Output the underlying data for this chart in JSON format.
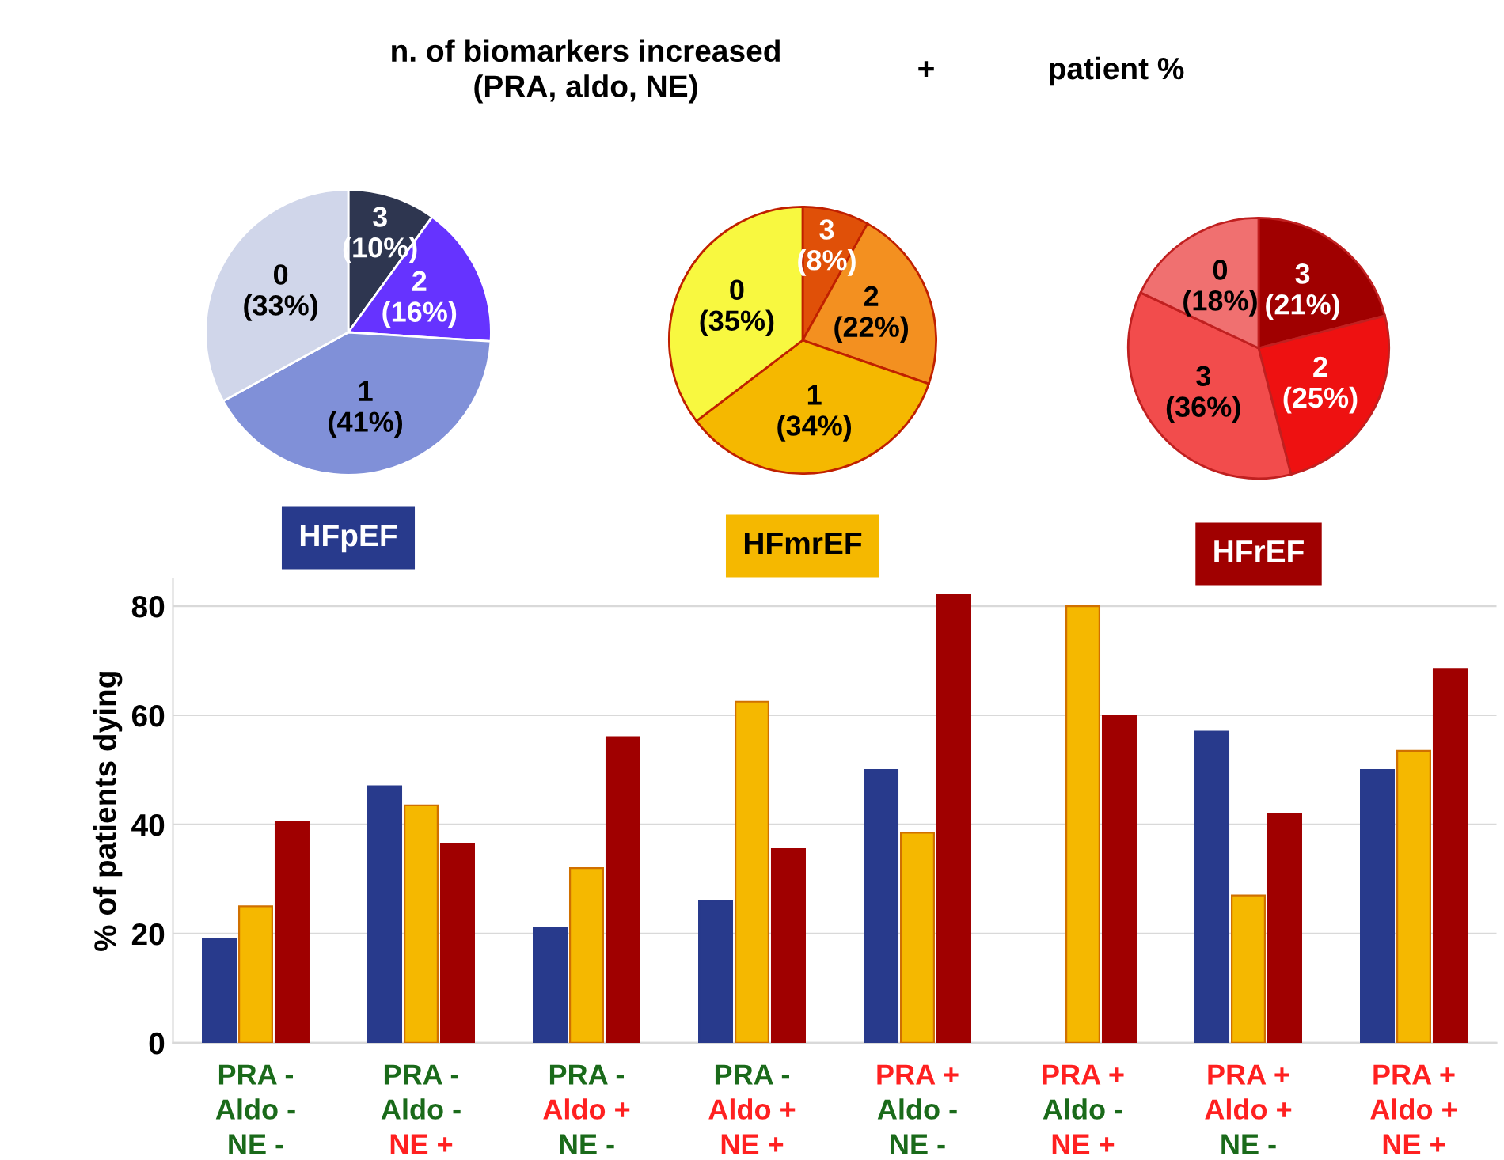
{
  "chart_data": [
    {
      "type": "pie",
      "annotations": [
        "n. of biomarkers increased\n(PRA, aldo, NE)",
        "+",
        "patient %"
      ],
      "categories": [
        "3",
        "2",
        "1",
        "0"
      ],
      "values": [
        10,
        16,
        41,
        33
      ],
      "value_labels": [
        "(10%)",
        "(16%)",
        "(41%)",
        "(33%)"
      ],
      "colors": [
        "#2e3650",
        "#6633ff",
        "#8090d8",
        "#d0d6ea"
      ]
    },
    {
      "type": "pie",
      "categories": [
        "3",
        "2",
        "1",
        "0"
      ],
      "values": [
        8,
        22,
        34,
        35
      ],
      "value_labels": [
        "(8%)",
        "(22%)",
        "(34%)",
        "(35%)"
      ],
      "colors": [
        "#e05008",
        "#f39020",
        "#f5b800",
        "#f8f840"
      ]
    },
    {
      "type": "pie",
      "categories": [
        "3",
        "2",
        "3",
        "0"
      ],
      "values": [
        21,
        25,
        36,
        18
      ],
      "value_labels": [
        "(21%)",
        "(25%)",
        "(36%)",
        "(18%)"
      ],
      "colors": [
        "#a00000",
        "#ee1111",
        "#f24c4c",
        "#f07070"
      ]
    },
    {
      "type": "bar",
      "ylabel": "% of patients dying",
      "categories": [
        "PRA -\nAldo -\nNE -",
        "PRA -\nAldo -\nNE +",
        "PRA -\nAldo +\nNE -",
        "PRA -\nAldo +\nNE +",
        "PRA +\nAldo -\nNE -",
        "PRA +\nAldo -\nNE +",
        "PRA +\nAldo +\nNE -",
        "PRA +\nAldo +\nNE +"
      ],
      "series": [
        {
          "name": "HFpEF",
          "color": "#283a8c",
          "values": [
            19,
            47,
            21,
            26,
            50,
            null,
            57,
            50
          ]
        },
        {
          "name": "HFmrEF",
          "color": "#f5b800",
          "values": [
            25,
            43.5,
            32,
            62.5,
            38.5,
            80,
            27,
            53.5
          ]
        },
        {
          "name": "HFrEF",
          "color": "#a00000",
          "values": [
            40.5,
            36.5,
            56,
            35.5,
            82,
            60,
            42,
            68.5
          ]
        }
      ],
      "ylim": [
        0,
        85
      ],
      "yticks": [
        0,
        20,
        40,
        60,
        80
      ],
      "grid": "y"
    }
  ]
}
